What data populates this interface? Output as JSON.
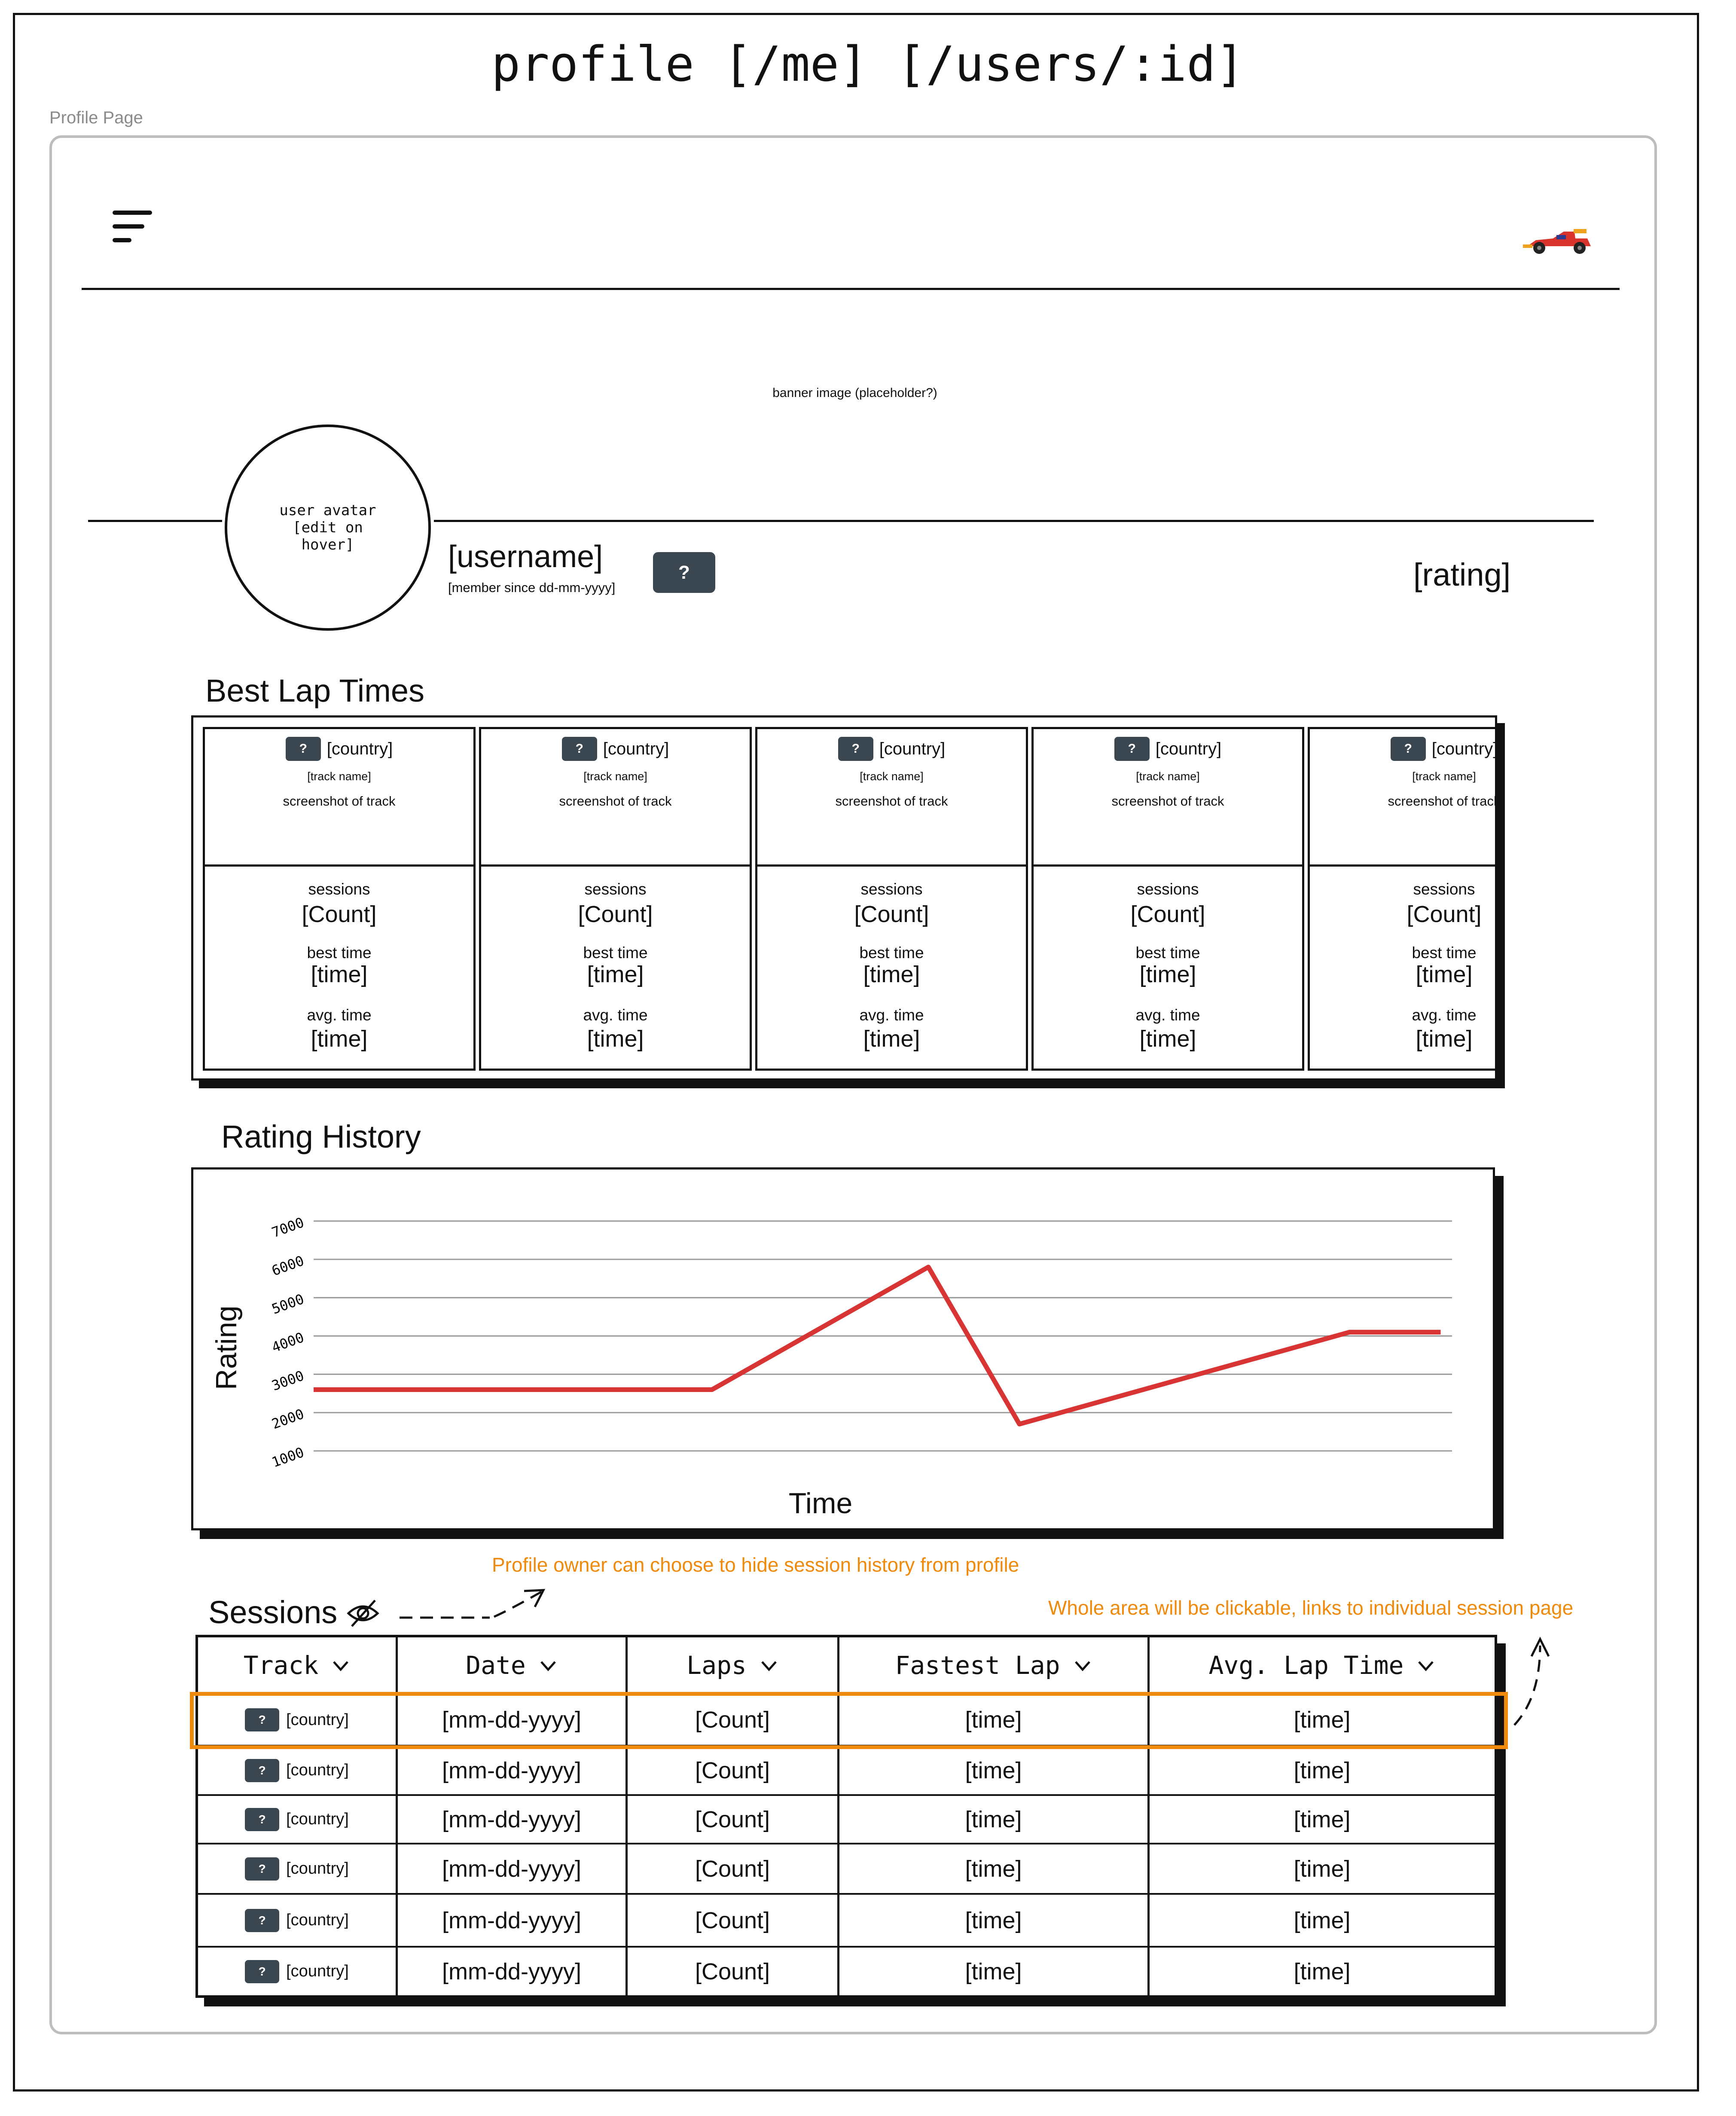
{
  "page_title": "profile [/me] [/users/:id]",
  "page_label": "Profile Page",
  "header": {
    "menu_icon": "hamburger-menu-icon",
    "logo_icon": "race-car-icon"
  },
  "banner": {
    "text": "banner image (placeholder?)"
  },
  "profile": {
    "avatar_text": "user avatar [edit on hover]",
    "username": "[username]",
    "member_since": "[member since dd-mm-yyyy]",
    "badge": "?",
    "rating": "[rating]"
  },
  "best_lap_times": {
    "title": "Best Lap Times",
    "cards": [
      {
        "badge": "?",
        "country": "[country]",
        "track_name": "[track name]",
        "screenshot": "screenshot of track",
        "sessions_label": "sessions",
        "sessions_value": "[Count]",
        "best_label": "best time",
        "best_value": "[time]",
        "avg_label": "avg. time",
        "avg_value": "[time]"
      },
      {
        "badge": "?",
        "country": "[country]",
        "track_name": "[track name]",
        "screenshot": "screenshot of track",
        "sessions_label": "sessions",
        "sessions_value": "[Count]",
        "best_label": "best time",
        "best_value": "[time]",
        "avg_label": "avg. time",
        "avg_value": "[time]"
      },
      {
        "badge": "?",
        "country": "[country]",
        "track_name": "[track name]",
        "screenshot": "screenshot of track",
        "sessions_label": "sessions",
        "sessions_value": "[Count]",
        "best_label": "best time",
        "best_value": "[time]",
        "avg_label": "avg. time",
        "avg_value": "[time]"
      },
      {
        "badge": "?",
        "country": "[country]",
        "track_name": "[track name]",
        "screenshot": "screenshot of track",
        "sessions_label": "sessions",
        "sessions_value": "[Count]",
        "best_label": "best time",
        "best_value": "[time]",
        "avg_label": "avg. time",
        "avg_value": "[time]"
      },
      {
        "badge": "?",
        "country": "[country]",
        "track_name": "[track name]",
        "screenshot": "screenshot of track",
        "sessions_label": "sessions",
        "sessions_value": "[Count]",
        "best_label": "best time",
        "best_value": "[time]",
        "avg_label": "avg. time",
        "avg_value": "[time]"
      }
    ]
  },
  "rating_history": {
    "title": "Rating History"
  },
  "chart_data": {
    "type": "line",
    "title": "",
    "xlabel": "Time",
    "ylabel": "Rating",
    "y_ticks": [
      1000,
      2000,
      3000,
      4000,
      5000,
      6000,
      7000
    ],
    "ylim": [
      1000,
      7000
    ],
    "x": [
      0,
      3.5,
      5.4,
      6.2,
      9.1,
      9.9
    ],
    "series": [
      {
        "values": [
          2600,
          2600,
          5800,
          1700,
          4100,
          4100
        ],
        "color": "#d93434"
      }
    ],
    "grid": true
  },
  "annotations": {
    "hide_sessions": "Profile owner can choose to hide session history from profile",
    "clickable_area": "Whole area will be clickable, links to individual session page"
  },
  "sessions": {
    "title": "Sessions",
    "hide_icon": "eye-off-icon",
    "columns": [
      "Track",
      "Date",
      "Laps",
      "Fastest Lap",
      "Avg. Lap Time"
    ],
    "rows": [
      {
        "badge": "?",
        "track": "[country]",
        "date": "[mm-dd-yyyy]",
        "laps": "[Count]",
        "fastest": "[time]",
        "avg": "[time]"
      },
      {
        "badge": "?",
        "track": "[country]",
        "date": "[mm-dd-yyyy]",
        "laps": "[Count]",
        "fastest": "[time]",
        "avg": "[time]"
      },
      {
        "badge": "?",
        "track": "[country]",
        "date": "[mm-dd-yyyy]",
        "laps": "[Count]",
        "fastest": "[time]",
        "avg": "[time]"
      },
      {
        "badge": "?",
        "track": "[country]",
        "date": "[mm-dd-yyyy]",
        "laps": "[Count]",
        "fastest": "[time]",
        "avg": "[time]"
      },
      {
        "badge": "?",
        "track": "[country]",
        "date": "[mm-dd-yyyy]",
        "laps": "[Count]",
        "fastest": "[time]",
        "avg": "[time]"
      },
      {
        "badge": "?",
        "track": "[country]",
        "date": "[mm-dd-yyyy]",
        "laps": "[Count]",
        "fastest": "[time]",
        "avg": "[time]"
      }
    ]
  },
  "colors": {
    "accent": "#f08a0c",
    "line": "#d93434",
    "badge": "#3b4750"
  }
}
